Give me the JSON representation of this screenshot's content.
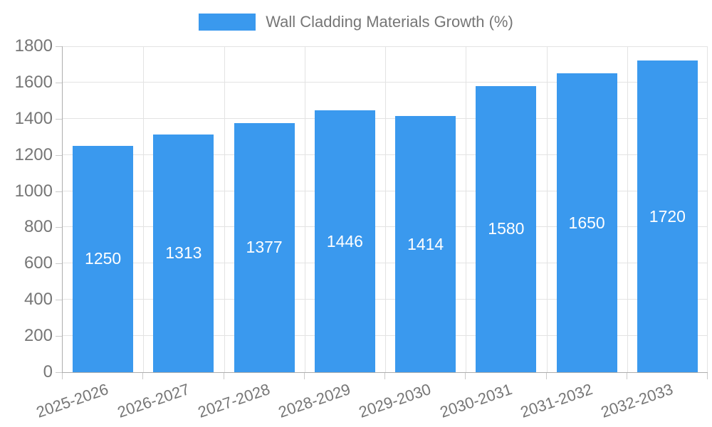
{
  "chart_data": {
    "type": "bar",
    "title": "Wall Cladding Materials Growth (%)",
    "categories": [
      "2025-2026",
      "2026-2027",
      "2027-2028",
      "2028-2029",
      "2029-2030",
      "2030-2031",
      "2031-2032",
      "2032-2033"
    ],
    "series": [
      {
        "name": "Wall Cladding Materials Growth (%)",
        "values": [
          1250,
          1313,
          1377,
          1446,
          1414,
          1580,
          1650,
          1720
        ]
      }
    ],
    "xlabel": "",
    "ylabel": "",
    "ylim": [
      0,
      1800
    ],
    "ytick_step": 200,
    "yticks": [
      0,
      200,
      400,
      600,
      800,
      1000,
      1200,
      1400,
      1600,
      1800
    ],
    "grid": true,
    "legend_position": "top",
    "x_tick_rotation_deg": -19,
    "bar_color": "#3A99EE",
    "value_label_color": "#FFFFFF"
  },
  "style": {
    "background": "#FFFFFF",
    "grid_color": "#E3E3E3",
    "axis_color": "#ADADAD",
    "tick_color": "#C9C9C9",
    "label_color": "#767676"
  }
}
